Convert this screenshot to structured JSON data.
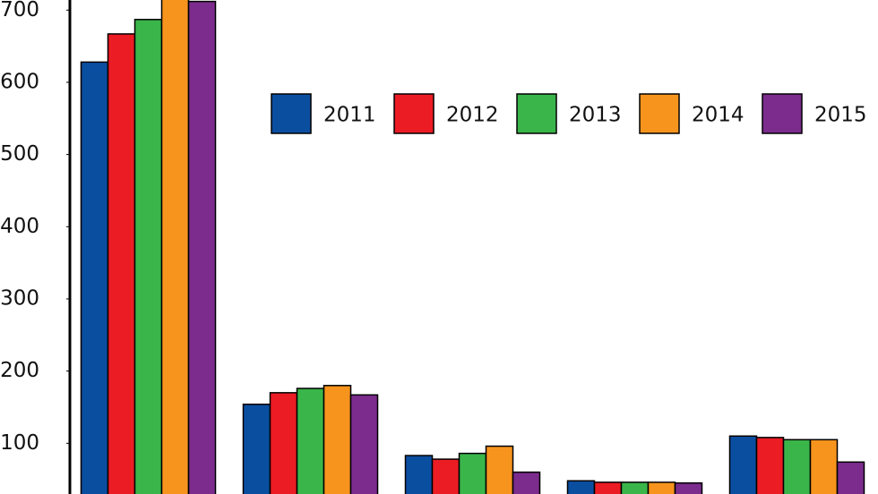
{
  "chart_data": {
    "type": "bar",
    "categories": [
      null,
      null,
      null,
      null,
      null
    ],
    "series": [
      {
        "name": "2011",
        "color": "#0a4ea0",
        "values": [
          628,
          154,
          83,
          48,
          110
        ]
      },
      {
        "name": "2012",
        "color": "#ec1c24",
        "values": [
          667,
          170,
          78,
          46,
          108
        ]
      },
      {
        "name": "2013",
        "color": "#3ab54a",
        "values": [
          687,
          176,
          86,
          46,
          105
        ]
      },
      {
        "name": "2014",
        "color": "#f7941d",
        "values": [
          730,
          180,
          96,
          46,
          105
        ]
      },
      {
        "name": "2015",
        "color": "#7b2c8c",
        "values": [
          712,
          167,
          60,
          45,
          74
        ]
      }
    ],
    "ylim": [
      0,
      714
    ],
    "yticks": [
      100,
      200,
      300,
      400,
      500,
      600,
      700
    ],
    "grid": false,
    "legend": "upper right"
  }
}
